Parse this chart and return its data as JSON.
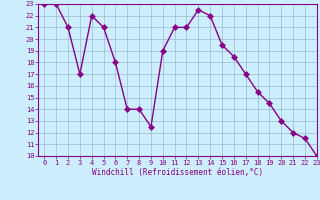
{
  "x": [
    0,
    1,
    2,
    3,
    4,
    5,
    6,
    7,
    8,
    9,
    10,
    11,
    12,
    13,
    14,
    15,
    16,
    17,
    18,
    19,
    20,
    21,
    22,
    23
  ],
  "y": [
    23,
    23,
    21,
    17,
    22,
    21,
    18,
    14,
    14,
    12.5,
    19,
    21,
    21,
    22.5,
    22,
    19.5,
    18.5,
    17,
    15.5,
    14.5,
    13,
    12,
    11.5,
    10
  ],
  "line_color": "#880088",
  "marker": "D",
  "marker_color": "#880088",
  "bg_color": "#cceeff",
  "grid_color": "#99bbcc",
  "xlabel": "Windchill (Refroidissement éolien,°C)",
  "xlabel_color": "#880088",
  "tick_color": "#880088",
  "ylim": [
    10,
    23
  ],
  "xlim": [
    -0.5,
    23
  ],
  "yticks": [
    10,
    11,
    12,
    13,
    14,
    15,
    16,
    17,
    18,
    19,
    20,
    21,
    22,
    23
  ],
  "xticks": [
    0,
    1,
    2,
    3,
    4,
    5,
    6,
    7,
    8,
    9,
    10,
    11,
    12,
    13,
    14,
    15,
    16,
    17,
    18,
    19,
    20,
    21,
    22,
    23
  ],
  "marker_size": 3,
  "line_width": 1.0,
  "tick_fontsize": 5,
  "xlabel_fontsize": 5.5
}
